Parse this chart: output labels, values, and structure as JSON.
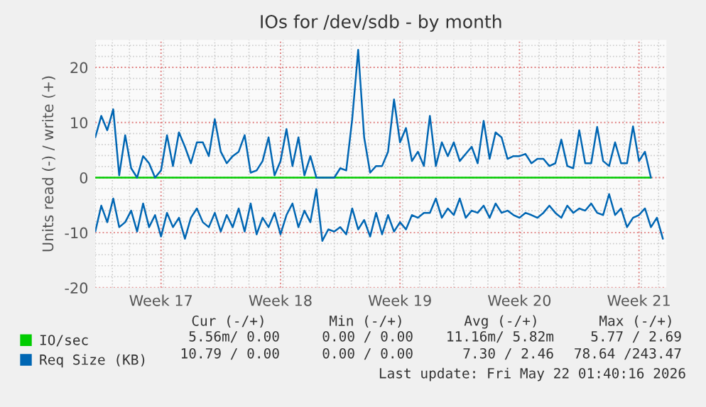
{
  "chart_data": {
    "type": "line",
    "title": "IOs for /dev/sdb - by month",
    "ylabel": "Units read (-) / write (+)",
    "categories": [
      null,
      null,
      null,
      null,
      null,
      null,
      null,
      null,
      null,
      null,
      null,
      "Week 17",
      null,
      null,
      null,
      null,
      null,
      null,
      null,
      null,
      null,
      null,
      null,
      null,
      null,
      null,
      null,
      null,
      null,
      null,
      null,
      "Week 18",
      null,
      null,
      null,
      null,
      null,
      null,
      null,
      null,
      null,
      null,
      null,
      null,
      null,
      null,
      null,
      null,
      null,
      null,
      null,
      "Week 19",
      null,
      null,
      null,
      null,
      null,
      null,
      null,
      null,
      null,
      null,
      null,
      null,
      null,
      null,
      null,
      null,
      null,
      null,
      null,
      "Week 20",
      null,
      null,
      null,
      null,
      null,
      null,
      null,
      null,
      null,
      null,
      null,
      null,
      null,
      null,
      null,
      null,
      null,
      null,
      null,
      "Week 21",
      null,
      null,
      null,
      null
    ],
    "ylim": [
      -20,
      25
    ],
    "yticks": [
      -20,
      -10,
      0,
      10,
      20
    ],
    "grid": true,
    "legend": "bottom",
    "series": [
      {
        "name": "IO/sec",
        "color": "#00cc00",
        "values": [
          0,
          0,
          0,
          0,
          0,
          0,
          0,
          0,
          0,
          0,
          0,
          0,
          0,
          0,
          0,
          0,
          0,
          0,
          0,
          0,
          0,
          0,
          0,
          0,
          0,
          0,
          0,
          0,
          0,
          0,
          0,
          0,
          0,
          0,
          0,
          0,
          0,
          0,
          0,
          0,
          0,
          0,
          0,
          0,
          0,
          0,
          0,
          0,
          0,
          0,
          0,
          0,
          0,
          0,
          0,
          0,
          0,
          0,
          0,
          0,
          0,
          0,
          0,
          0,
          0,
          0,
          0,
          0,
          0,
          0,
          0,
          0,
          0,
          0,
          0,
          0,
          0,
          0,
          0,
          0,
          0,
          0,
          0,
          0,
          0,
          0,
          0,
          0,
          0,
          0,
          0,
          0,
          0,
          0,
          null,
          null
        ]
      },
      {
        "name": "Req Size (KB)",
        "color": "#0066b3",
        "values": [
          7.3,
          11.2,
          8.6,
          12.4,
          0.4,
          7.7,
          1.7,
          0,
          3.9,
          2.6,
          0,
          1.3,
          7.7,
          2.1,
          8.2,
          5.6,
          2.6,
          6.4,
          6.4,
          3.9,
          10.6,
          4.7,
          2.6,
          3.9,
          4.7,
          7.7,
          0.9,
          1.3,
          3.0,
          7.3,
          0.4,
          3.0,
          8.8,
          2.1,
          7.3,
          0.4,
          3.9,
          0,
          0,
          0,
          0,
          1.7,
          1.3,
          10.6,
          23.2,
          7.3,
          0.9,
          2.1,
          2.1,
          4.7,
          14.2,
          6.4,
          9.0,
          3.0,
          4.7,
          2.1,
          11.2,
          2.1,
          6.4,
          3.9,
          6.4,
          3.0,
          4.3,
          5.6,
          2.6,
          10.3,
          3.4,
          8.2,
          7.3,
          3.4,
          3.9,
          3.9,
          4.3,
          2.6,
          3.4,
          3.4,
          2.1,
          2.6,
          6.9,
          2.1,
          1.7,
          8.6,
          2.6,
          2.6,
          9.2,
          3.0,
          2.1,
          6.4,
          2.6,
          2.6,
          9.3,
          3.0,
          4.7,
          0,
          null,
          null
        ]
      },
      {
        "color": "#0066b3",
        "values": [
          -9.8,
          -5.1,
          -8.1,
          -3.8,
          -9.0,
          -8.1,
          -6.0,
          -9.8,
          -4.7,
          -9.0,
          -6.8,
          -10.7,
          -6.4,
          -9.0,
          -7.3,
          -11.1,
          -7.3,
          -5.6,
          -8.1,
          -9.0,
          -6.4,
          -9.8,
          -6.8,
          -9.0,
          -5.6,
          -9.8,
          -4.7,
          -10.3,
          -7.3,
          -9.0,
          -6.4,
          -10.3,
          -6.8,
          -4.7,
          -9.0,
          -6.0,
          -8.1,
          -2.1,
          -11.5,
          -9.4,
          -9.8,
          -9.0,
          -10.3,
          -5.6,
          -9.4,
          -7.7,
          -10.7,
          -6.4,
          -10.3,
          -6.8,
          -9.8,
          -8.1,
          -9.4,
          -6.8,
          -7.3,
          -6.4,
          -6.4,
          -3.8,
          -7.3,
          -5.6,
          -6.8,
          -3.8,
          -7.3,
          -6.0,
          -6.4,
          -5.1,
          -7.3,
          -4.7,
          -6.4,
          -6.0,
          -6.8,
          -7.3,
          -6.4,
          -6.8,
          -7.3,
          -6.4,
          -5.1,
          -6.4,
          -7.3,
          -5.1,
          -6.4,
          -5.6,
          -6.0,
          -4.7,
          -6.4,
          -6.8,
          -3.0,
          -6.8,
          -5.6,
          -9.0,
          -7.3,
          -6.8,
          -5.6,
          -9.0,
          -7.3,
          -11.1
        ]
      }
    ],
    "annotations": [
      "Cur (-/+)",
      "Min (-/+)",
      "Avg (-/+)",
      "Max (-/+)",
      "5.56m/ 0.00",
      "0.00 / 0.00",
      "11.16m/ 5.82m",
      "5.77 / 2.69",
      "10.79 / 0.00",
      "0.00 / 0.00",
      "7.30 / 2.46",
      "78.64 /243.47",
      "Last update: Fri May 22 01:40:16 2026"
    ]
  }
}
